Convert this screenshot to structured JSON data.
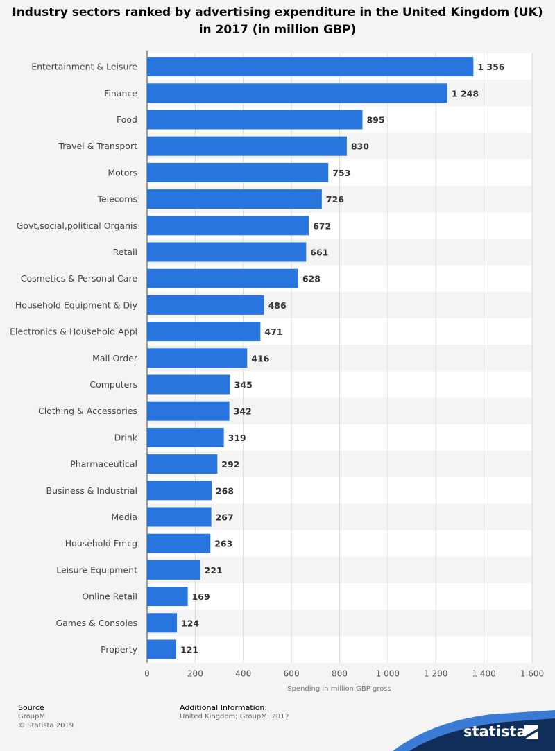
{
  "chart_data": {
    "type": "bar",
    "orientation": "horizontal",
    "title": "Industry sectors ranked by advertising expenditure in the United Kingdom (UK) in 2017 (in million GBP)",
    "xlabel": "Spending in million GBP gross",
    "ylabel": "",
    "xlim": [
      0,
      1600
    ],
    "xticks": [
      0,
      200,
      400,
      600,
      800,
      1000,
      1200,
      1400,
      1600
    ],
    "xtick_labels": [
      "0",
      "200",
      "400",
      "600",
      "800",
      "1 000",
      "1 200",
      "1 400",
      "1 600"
    ],
    "grid": true,
    "categories": [
      "Entertainment & Leisure",
      "Finance",
      "Food",
      "Travel & Transport",
      "Motors",
      "Telecoms",
      "Govt,social,political Organis",
      "Retail",
      "Cosmetics & Personal Care",
      "Household Equipment & Diy",
      "Electronics & Household Appl",
      "Mail Order",
      "Computers",
      "Clothing & Accessories",
      "Drink",
      "Pharmaceutical",
      "Business & Industrial",
      "Media",
      "Household Fmcg",
      "Leisure Equipment",
      "Online Retail",
      "Games & Consoles",
      "Property"
    ],
    "values": [
      1356,
      1248,
      895,
      830,
      753,
      726,
      672,
      661,
      628,
      486,
      471,
      416,
      345,
      342,
      319,
      292,
      268,
      267,
      263,
      221,
      169,
      124,
      121
    ],
    "value_labels": [
      "1 356",
      "1 248",
      "895",
      "830",
      "753",
      "726",
      "672",
      "661",
      "628",
      "486",
      "471",
      "416",
      "345",
      "342",
      "319",
      "292",
      "268",
      "267",
      "263",
      "221",
      "169",
      "124",
      "121"
    ],
    "bar_color": "#2876dd"
  },
  "footer": {
    "source_label": "Source",
    "source_value": "GroupM",
    "copyright": "© Statista 2019",
    "additional_label": "Additional Information:",
    "additional_value": "United Kingdom; GroupM; 2017"
  },
  "branding": {
    "logo": "statista",
    "logo_icon": "statista-logo-icon",
    "accent_color": "#0f2f5a"
  }
}
